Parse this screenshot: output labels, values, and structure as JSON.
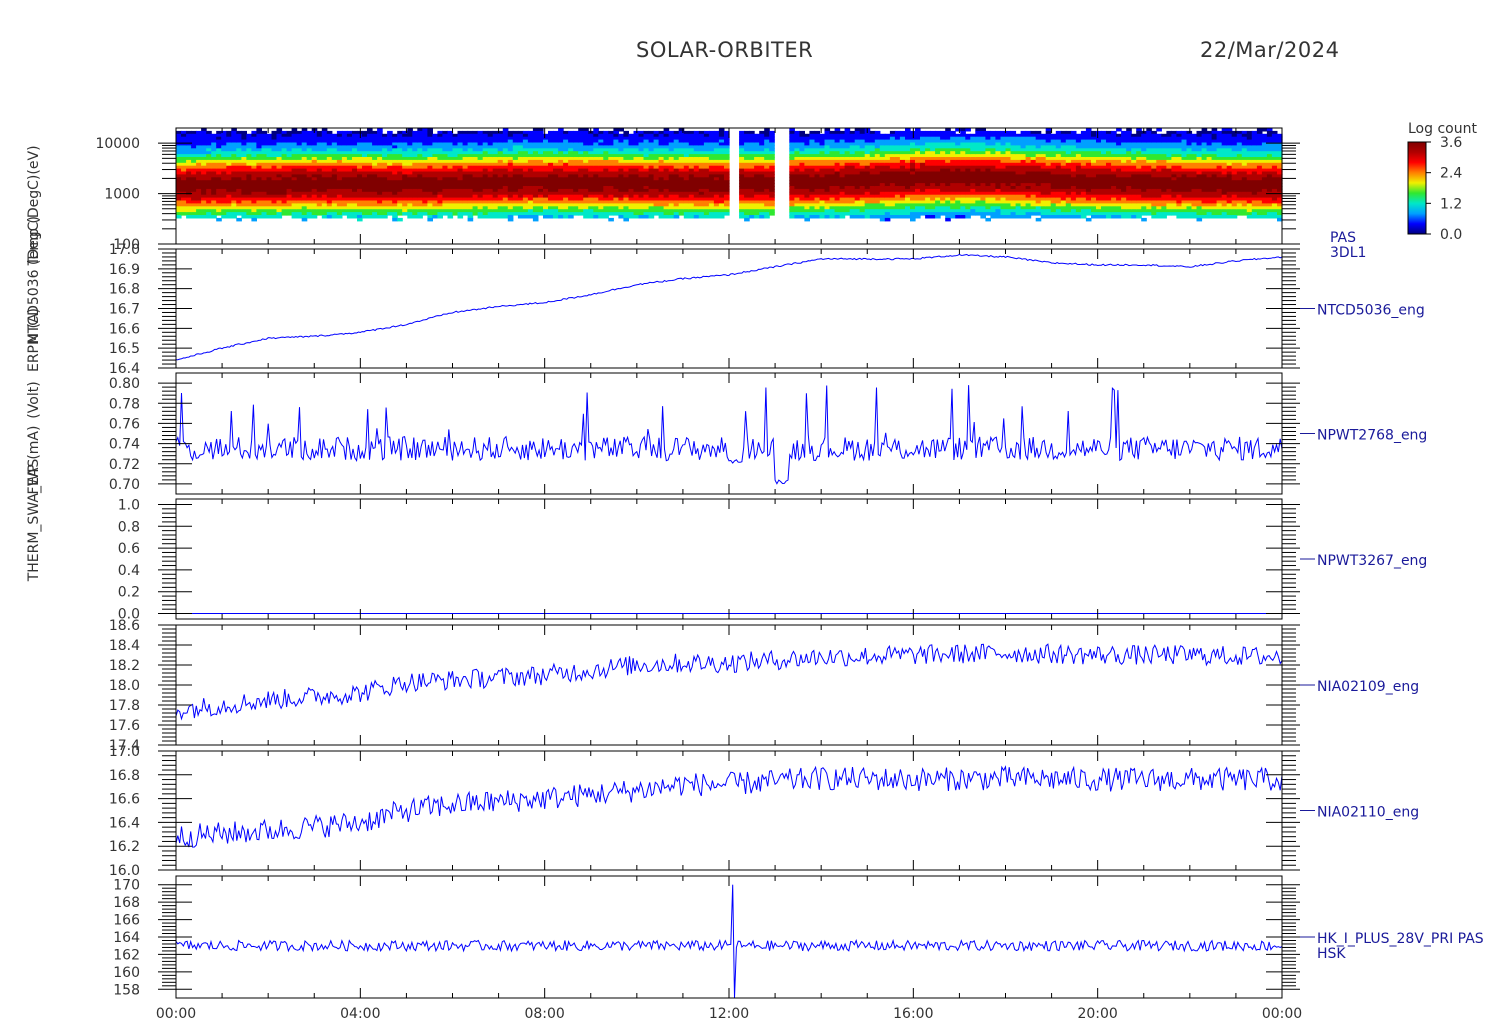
{
  "header": {
    "title": "SOLAR-ORBITER",
    "date": "22/Mar/2024"
  },
  "colors": {
    "trace": "#0000ff",
    "axis": "#000000",
    "label": "#333333",
    "panel_label": "#1a1a9a"
  },
  "colorbar": {
    "title": "Log count",
    "ticks": [
      "3.6",
      "2.4",
      "1.2",
      "0.0"
    ],
    "range": [
      0.0,
      3.6
    ],
    "palette": [
      "#000080",
      "#0000ff",
      "#00a0ff",
      "#00e8c8",
      "#30e830",
      "#f0f000",
      "#ff8000",
      "#ff0000",
      "#b00000",
      "#800000"
    ]
  },
  "y_title_strings": [
    "(eV)",
    "Temp (DegC)",
    "NTCD5036 (DegC)",
    "ERPM (A)",
    "(Volt)",
    "FWP (mA)",
    "THERM_SWA_EAS"
  ],
  "chart_data": [
    {
      "type": "heatmap",
      "name": "PAS",
      "right_label": [
        "PAS",
        "3DL1"
      ],
      "ylabel": "(eV)",
      "y_scale": "log",
      "ylim": [
        100,
        20000
      ],
      "y_ticks": [
        "10000",
        "1000",
        "100"
      ],
      "y_tick_values": [
        10000,
        1000,
        100
      ],
      "band_center_eV": [
        1400,
        1500,
        1500,
        1600,
        1550,
        1500,
        1550,
        1650,
        1700,
        1650,
        1600,
        1550,
        1550,
        1600,
        1700,
        1800,
        2000,
        2100,
        2000,
        1800,
        1700,
        1600,
        1550,
        1500,
        1500
      ],
      "data_gaps_hours": [
        [
          12.05,
          12.2
        ],
        [
          13.0,
          13.3
        ]
      ]
    },
    {
      "type": "line",
      "name": "NTCD5036_eng",
      "right_label": [
        "NTCD5036_eng"
      ],
      "ylim": [
        16.4,
        17.0
      ],
      "y_ticks": [
        "17.0",
        "16.9",
        "16.8",
        "16.7",
        "16.6",
        "16.5",
        "16.4"
      ],
      "y_tick_values": [
        17.0,
        16.9,
        16.8,
        16.7,
        16.6,
        16.5,
        16.4
      ],
      "x_hours": [
        0,
        1,
        2,
        3,
        4,
        5,
        6,
        7,
        8,
        9,
        10,
        11,
        12,
        13,
        14,
        15,
        16,
        17,
        18,
        19,
        20,
        21,
        22,
        23,
        24
      ],
      "values": [
        16.44,
        16.5,
        16.55,
        16.56,
        16.58,
        16.62,
        16.68,
        16.71,
        16.73,
        16.77,
        16.82,
        16.85,
        16.87,
        16.91,
        16.95,
        16.95,
        16.95,
        16.97,
        16.96,
        16.93,
        16.92,
        16.92,
        16.91,
        16.94,
        16.96
      ],
      "noise": 0.004
    },
    {
      "type": "line",
      "name": "NPWT2768_eng",
      "right_label": [
        "NPWT2768_eng"
      ],
      "ylim": [
        0.69,
        0.81
      ],
      "y_ticks": [
        "0.80",
        "0.78",
        "0.76",
        "0.74",
        "0.72",
        "0.70"
      ],
      "y_tick_values": [
        0.8,
        0.78,
        0.76,
        0.74,
        0.72,
        0.7
      ],
      "baseline": 0.735,
      "noise": 0.012,
      "spike_max": 0.8,
      "dips": [
        [
          12.0,
          12.3,
          0.72
        ],
        [
          13.0,
          13.3,
          0.7
        ]
      ]
    },
    {
      "type": "line",
      "name": "NPWT3267_eng",
      "right_label": [
        "NPWT3267_eng"
      ],
      "ylim": [
        -0.05,
        1.05
      ],
      "y_ticks": [
        "1.0",
        "0.8",
        "0.6",
        "0.4",
        "0.2",
        "0.0"
      ],
      "y_tick_values": [
        1.0,
        0.8,
        0.6,
        0.4,
        0.2,
        0.0
      ],
      "x_hours": [
        0,
        24
      ],
      "values": [
        0.0,
        0.0
      ]
    },
    {
      "type": "line",
      "name": "NIA02109_eng",
      "right_label": [
        "NIA02109_eng"
      ],
      "ylim": [
        17.4,
        18.6
      ],
      "y_ticks": [
        "18.6",
        "18.4",
        "18.2",
        "18.0",
        "17.8",
        "17.6",
        "17.4"
      ],
      "y_tick_values": [
        18.6,
        18.4,
        18.2,
        18.0,
        17.8,
        17.6,
        17.4
      ],
      "x_hours": [
        0,
        2,
        4,
        5,
        6,
        8,
        10,
        11,
        12,
        14,
        16,
        18,
        20,
        22,
        24
      ],
      "values": [
        17.75,
        17.85,
        17.92,
        18.03,
        18.05,
        18.1,
        18.2,
        18.22,
        18.22,
        18.28,
        18.3,
        18.32,
        18.3,
        18.3,
        18.28
      ],
      "noise": 0.1
    },
    {
      "type": "line",
      "name": "NIA02110_eng",
      "right_label": [
        "NIA02110_eng"
      ],
      "ylim": [
        16.0,
        17.0
      ],
      "y_ticks": [
        "17.0",
        "16.8",
        "16.6",
        "16.4",
        "16.2",
        "16.0"
      ],
      "y_tick_values": [
        17.0,
        16.8,
        16.6,
        16.4,
        16.2,
        16.0
      ],
      "x_hours": [
        0,
        2,
        4,
        5,
        6,
        8,
        10,
        11,
        12,
        14,
        16,
        18,
        20,
        22,
        24
      ],
      "values": [
        16.28,
        16.33,
        16.4,
        16.5,
        16.55,
        16.6,
        16.67,
        16.72,
        16.72,
        16.77,
        16.76,
        16.77,
        16.76,
        16.76,
        16.76
      ],
      "noise": 0.1
    },
    {
      "type": "line",
      "name": "HK_I_PLUS_28V_PRI PAS HSK",
      "right_label": [
        "HK_I_PLUS_28V_PRI PAS",
        "HSK"
      ],
      "ylim": [
        157,
        171
      ],
      "y_ticks": [
        "170",
        "168",
        "166",
        "164",
        "162",
        "160",
        "158"
      ],
      "y_tick_values": [
        170,
        168,
        166,
        164,
        162,
        160,
        158
      ],
      "baseline": 163.0,
      "noise": 0.6,
      "spike": {
        "hour": 12.1,
        "max": 170,
        "min": 157
      }
    }
  ],
  "x_axis": {
    "range_hours": [
      0,
      24
    ],
    "ticks": [
      "00:00",
      "04:00",
      "08:00",
      "12:00",
      "16:00",
      "20:00",
      "00:00"
    ],
    "tick_hours": [
      0,
      4,
      8,
      12,
      16,
      20,
      24
    ]
  }
}
